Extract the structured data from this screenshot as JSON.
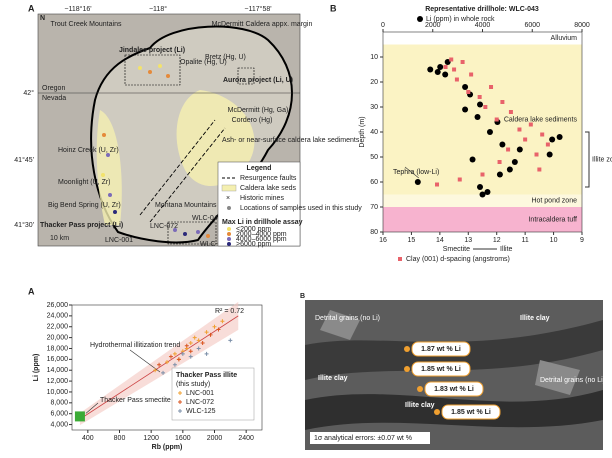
{
  "map": {
    "panel": "A",
    "coords": [
      "−118°16'",
      "−118°",
      "−117°58'",
      "42°",
      "41°45'",
      "41°30'"
    ],
    "places": [
      "Trout Creek Mountains",
      "Jindalee project (Li)",
      "McDermitt Caldera appx. margin",
      "Opalite (Hg, U)",
      "Bretz (Hg, U)",
      "Aurora project (Li, U)",
      "Oregon",
      "Nevada",
      "McDermitt (Hg, Ga)",
      "Cordero (Hg)",
      "Ash- or near-surface caldera lake sediments",
      "Hoinz Creek (U, Zr)",
      "Moonlight (U, Zr)",
      "Big Bend Spring (U, Zr)",
      "Montana Mountains",
      "LNC-072",
      "WLC-043",
      "Thacker Pass project (Li)",
      "LNC-001",
      "WLC-125",
      "10 km",
      "N"
    ],
    "legend": {
      "title": "Legend",
      "items": [
        "Resurgence faults",
        "Caldera lake seds",
        "Historic mines",
        "Locations of samples used in this study"
      ],
      "li_title": "Max Li in drillhole assay",
      "li_items": [
        "<2000 ppm",
        "2000–4000 ppm",
        "4000–6000 ppm",
        ">6000 ppm"
      ],
      "li_colors": [
        "#f3e36b",
        "#e58a3a",
        "#7b6bb8",
        "#2c2a7a"
      ]
    }
  },
  "chart_data": [
    {
      "type": "scatter",
      "panel": "B",
      "title": "Representative drillhole: WLC-043",
      "ylabel": "Depth (m)",
      "ylim": [
        0,
        80
      ],
      "yticks": [
        10,
        20,
        30,
        40,
        50,
        60,
        70,
        80
      ],
      "xlim": [
        0,
        8000
      ],
      "xticks": [
        0,
        2000,
        4000,
        6000,
        8000
      ],
      "x2lim": [
        16,
        9
      ],
      "x2ticks": [
        16,
        15,
        14,
        13,
        12,
        11,
        10,
        9
      ],
      "x2label_left": "Smectite",
      "x2label_right": "Illite",
      "zones": [
        {
          "name": "Alluvium",
          "from": 0,
          "to": 5,
          "color": "#ffffff"
        },
        {
          "name": "Caldera lake sediments",
          "from": 5,
          "to": 65,
          "color": "#fbf3c4"
        },
        {
          "name": "Hot pond zone",
          "from": 65,
          "to": 70,
          "color": "#fdf8de"
        },
        {
          "name": "Intracaldera tuff",
          "from": 70,
          "to": 80,
          "color": "#f7b3cf"
        }
      ],
      "bracket": {
        "label": "Illite zone",
        "from": 40,
        "to": 62
      },
      "annotation": "Tephra (low-Li)",
      "series": [
        {
          "name": "Li (ppm) in whole rock",
          "color": "#000000",
          "marker": "circle",
          "x": [
            2600,
            2300,
            1900,
            2200,
            2500,
            3300,
            3500,
            3900,
            3300,
            3800,
            4600,
            4300,
            7100,
            6800,
            4800,
            5500,
            6700,
            3600,
            5300,
            5100,
            4700,
            1400,
            3900,
            4200,
            4000
          ],
          "y": [
            12,
            14,
            15,
            16,
            17,
            22,
            25,
            29,
            31,
            34,
            36,
            40,
            42,
            43,
            45,
            47,
            49,
            51,
            52,
            55,
            57,
            60,
            62,
            64,
            65
          ]
        },
        {
          "name": "Clay (001) d-spacing (angstroms)",
          "color": "#e8626a",
          "marker": "square",
          "axis": "x2",
          "x": [
            13.6,
            13.2,
            13.8,
            13.5,
            12.9,
            13.4,
            12.2,
            13.0,
            12.6,
            11.8,
            12.4,
            11.5,
            12.0,
            10.8,
            11.2,
            10.4,
            11.0,
            10.2,
            11.6,
            10.6,
            11.9,
            10.5,
            12.5,
            13.3,
            14.1
          ],
          "y": [
            11,
            12,
            14,
            15,
            17,
            19,
            22,
            24,
            26,
            28,
            30,
            32,
            35,
            37,
            39,
            41,
            43,
            45,
            47,
            49,
            52,
            55,
            57,
            59,
            61
          ]
        }
      ]
    },
    {
      "type": "scatter",
      "panel": "A",
      "xlabel": "Rb (ppm)",
      "ylabel": "Li (ppm)",
      "xlim": [
        200,
        2600
      ],
      "xticks": [
        400,
        800,
        1200,
        1600,
        2000,
        2400
      ],
      "ylim": [
        3000,
        26000
      ],
      "yticks": [
        {
          "value": 4000,
          "label": "4,000"
        },
        {
          "value": 6000,
          "label": "6,000"
        },
        {
          "value": 8000,
          "label": "8,000"
        },
        {
          "value": 10000,
          "label": "10,000"
        },
        {
          "value": 12000,
          "label": "12,000"
        },
        {
          "value": 14000,
          "label": "14,000"
        },
        {
          "value": 16000,
          "label": "16,000"
        },
        {
          "value": 18000,
          "label": "18,000"
        },
        {
          "value": 20000,
          "label": "20,000"
        },
        {
          "value": 22000,
          "label": "22,000"
        },
        {
          "value": 24000,
          "label": "24,000"
        },
        {
          "value": 26000,
          "label": "26,000"
        }
      ],
      "legend_title": "Thacker Pass illite",
      "legend_subtitle": "(this study)",
      "r2_label": "R² = 0.72",
      "trend": {
        "label": "Hydrothermal illitization trend",
        "x": [
          300,
          2300
        ],
        "y": [
          5000,
          24000
        ]
      },
      "smectite": {
        "label": "Thacker Pass smectite",
        "x": 300,
        "y": 5500,
        "color": "#3aaa35"
      },
      "series": [
        {
          "name": "LNC-001",
          "color": "#f0a030",
          "x": [
            1250,
            1400,
            1500,
            1600,
            1700,
            1800,
            1900,
            2000,
            2100,
            1550,
            1650,
            1750
          ],
          "y": [
            14000,
            15500,
            17000,
            17500,
            19000,
            19500,
            21000,
            22000,
            23000,
            16000,
            18000,
            20000
          ]
        },
        {
          "name": "LNC-072",
          "color": "#d9531e",
          "x": [
            1300,
            1450,
            1550,
            1650,
            1700,
            1850,
            1950,
            2050
          ],
          "y": [
            15000,
            16500,
            16000,
            18500,
            17500,
            19000,
            20500,
            21500
          ]
        },
        {
          "name": "WLC-125",
          "color": "#7b8fa8",
          "x": [
            1350,
            1500,
            1600,
            1700,
            1800,
            1900,
            2200
          ],
          "y": [
            13500,
            15000,
            17000,
            16500,
            18000,
            17000,
            19500
          ]
        }
      ]
    }
  ],
  "sem": {
    "panel": "B",
    "labels": [
      "Detrital grains (no Li)",
      "Illite clay",
      "Illite clay",
      "Illite clay",
      "Detrital grains (no Li)",
      "1.87 wt % Li",
      "1.85 wt % Li",
      "1.83 wt % Li",
      "1.85 wt % Li",
      "1σ analytical errors: ±0.07 wt %"
    ]
  }
}
